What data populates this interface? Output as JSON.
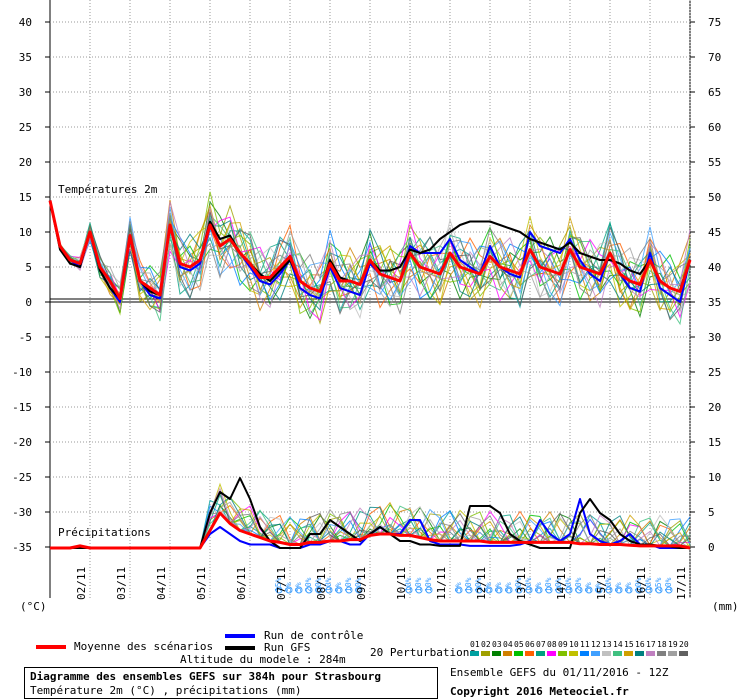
{
  "chart_data": {
    "type": "line",
    "title": "Diagramme des ensembles GEFS sur 384h pour Strasbourg",
    "subtitle": "Température 2m (°C) , précipitations (mm)",
    "ylabel_left": "(°C)",
    "ylabel_right": "(mm)",
    "y_left_ticks": [
      "40",
      "35",
      "30",
      "25",
      "20",
      "15",
      "10",
      "5",
      "0",
      "-5",
      "-10",
      "-15",
      "-20",
      "-25",
      "-30",
      "-35"
    ],
    "y_right_ticks": [
      "75",
      "70",
      "65",
      "60",
      "55",
      "50",
      "45",
      "40",
      "35",
      "30",
      "25",
      "20",
      "15",
      "10",
      "5",
      "0"
    ],
    "x_ticks": [
      "02/11",
      "03/11",
      "04/11",
      "05/11",
      "06/11",
      "07/11",
      "08/11",
      "09/11",
      "10/11",
      "11/11",
      "12/11",
      "13/11",
      "14/11",
      "15/11",
      "16/11",
      "17/11"
    ],
    "section_labels": {
      "temp": "Températures 2m",
      "precip": "Précipitations"
    },
    "x_step_hours": 6,
    "series": [
      {
        "name": "Moyenne des scénarios",
        "color": "#ff0000",
        "kind": "temp",
        "values": [
          14.5,
          8,
          6,
          5.5,
          10,
          5,
          3,
          0.5,
          9.5,
          3,
          2,
          1,
          11,
          5.5,
          5,
          6,
          11,
          8,
          9,
          7,
          5.5,
          3.5,
          3.5,
          5,
          6.5,
          3,
          2,
          1.5,
          5.5,
          3,
          3,
          2.5,
          6,
          4,
          3.5,
          3,
          7,
          5,
          4.5,
          4,
          7,
          5,
          4.5,
          4,
          6.5,
          5,
          4.5,
          4,
          7.5,
          5,
          4.5,
          4,
          7.5,
          5,
          4.5,
          4,
          7,
          4,
          3,
          2.5,
          6,
          3,
          2,
          1.5,
          6
        ]
      },
      {
        "name": "Run de contrôle",
        "color": "#0000ff",
        "kind": "temp",
        "values": [
          14.5,
          8,
          6,
          5,
          10,
          4.5,
          2,
          0,
          9,
          3,
          1,
          0.5,
          11,
          5,
          4.5,
          5.5,
          11,
          8,
          9,
          7,
          5,
          3,
          2.5,
          4,
          6,
          2,
          1,
          0.5,
          5,
          2,
          1.5,
          1,
          5.5,
          4,
          3.5,
          3,
          8,
          7,
          7,
          7,
          9,
          6,
          5,
          4,
          8,
          5,
          4,
          3.5,
          10,
          8,
          7.5,
          7,
          9,
          6,
          4,
          3,
          7,
          4,
          2,
          1.5,
          7,
          2,
          1,
          0,
          6
        ]
      },
      {
        "name": "Run GFS",
        "color": "#000000",
        "kind": "temp",
        "values": [
          14.5,
          7.5,
          5.5,
          5,
          10,
          4.5,
          2,
          0.5,
          9.5,
          3,
          1.5,
          1,
          11,
          5.5,
          5,
          6,
          11.5,
          9,
          9.5,
          7,
          5.5,
          4,
          3,
          4.5,
          6,
          3,
          2,
          1.5,
          6,
          3.5,
          3,
          2.5,
          6,
          4.5,
          4.5,
          5,
          7.5,
          7,
          7.5,
          9,
          10,
          11,
          11.5,
          11.5,
          11.5,
          11,
          10.5,
          10,
          9,
          8.5,
          8,
          7.5,
          8.5,
          7,
          6.5,
          6,
          6,
          5.5,
          4.5,
          4,
          6,
          3,
          2,
          1.5,
          6
        ]
      },
      {
        "name": "Moyenne des scénarios",
        "color": "#ff0000",
        "kind": "precip",
        "values": [
          0,
          0,
          0,
          0.3,
          0,
          0,
          0,
          0,
          0,
          0,
          0,
          0,
          0,
          0,
          0,
          0,
          2.5,
          5,
          3.5,
          2.5,
          2,
          1.5,
          1,
          0.8,
          0.5,
          0.5,
          0.8,
          0.8,
          1,
          1,
          1.2,
          1.2,
          1.8,
          2,
          2,
          1.8,
          1.8,
          1.5,
          1.2,
          1,
          1,
          1,
          1,
          1,
          0.8,
          0.8,
          0.8,
          0.8,
          0.8,
          0.8,
          0.8,
          0.8,
          0.8,
          0.6,
          0.6,
          0.5,
          0.5,
          0.5,
          0.4,
          0.3,
          0.3,
          0.3,
          0.3,
          0.3,
          0
        ]
      },
      {
        "name": "Run de contrôle",
        "color": "#0000ff",
        "kind": "precip",
        "values": [
          0,
          0,
          0,
          0,
          0,
          0,
          0,
          0,
          0,
          0,
          0,
          0,
          0,
          0,
          0,
          0,
          2,
          3,
          2,
          1,
          0.5,
          0.5,
          0.5,
          0,
          0,
          0,
          0.5,
          0.5,
          1,
          1,
          0.5,
          0.5,
          2,
          3,
          2,
          2,
          4,
          4,
          1,
          0.5,
          0.5,
          0.5,
          0.3,
          0.3,
          0.3,
          0.3,
          0.3,
          0.5,
          1,
          4,
          2,
          1,
          2,
          7,
          2,
          1,
          0.5,
          1,
          2,
          0.5,
          0.5,
          0,
          0,
          0,
          0
        ]
      },
      {
        "name": "Run GFS",
        "color": "#000000",
        "kind": "precip",
        "values": [
          0,
          0,
          0,
          0,
          0,
          0,
          0,
          0,
          0,
          0,
          0,
          0,
          0,
          0,
          0,
          0,
          5,
          8,
          7,
          10,
          7,
          3,
          1,
          0,
          0,
          0,
          2,
          2,
          4,
          3,
          2,
          1,
          2,
          3,
          2,
          1,
          1,
          0.5,
          0.5,
          0.3,
          0.3,
          0.3,
          6,
          6,
          6,
          5,
          2,
          1,
          0.5,
          0,
          0,
          0,
          0,
          5,
          7,
          5,
          4,
          2,
          1,
          0.5,
          0.5,
          0.3,
          0.2,
          0,
          0
        ]
      }
    ]
  },
  "perturbations": {
    "label": "20 Perturbations",
    "ids": [
      "01",
      "02",
      "03",
      "04",
      "05",
      "06",
      "07",
      "08",
      "09",
      "10",
      "11",
      "12",
      "13",
      "14",
      "15",
      "16",
      "17",
      "18",
      "19",
      "20"
    ],
    "colors": [
      "#00a0a0",
      "#a0a000",
      "#008000",
      "#d08000",
      "#00c000",
      "#ff6000",
      "#00a080",
      "#ff00ff",
      "#80c000",
      "#c0c000",
      "#0080ff",
      "#40a0ff",
      "#c0c0c0",
      "#40c080",
      "#d0a000",
      "#008080",
      "#c080c0",
      "#808080",
      "#a0a0a0",
      "#606060"
    ]
  },
  "snow_labels": [
    "15%",
    "5%",
    "5%",
    "20%",
    "20%",
    "10%",
    "5%",
    "10%",
    "20%",
    "10%",
    "10%",
    "10%",
    "5%",
    "10%",
    "10%",
    "5%",
    "5%",
    "5%",
    "10%",
    "10%",
    "5%",
    "10%",
    "10%",
    "10%",
    "20%",
    "5%",
    "5%",
    "10%",
    "5%",
    "5%",
    "10%",
    "10%",
    "25%",
    "10%",
    "10%",
    "10%",
    "20%",
    "20%"
  ],
  "legend": {
    "mean": "Moyenne des scénarios",
    "control": "Run de contrôle",
    "gfs": "Run GFS",
    "altitude": "Altitude du modele : 284m"
  },
  "footer": {
    "title": "Diagramme des ensembles GEFS sur 384h pour Strasbourg",
    "subtitle": "Température 2m (°C) , précipitations (mm)",
    "ensemble": "Ensemble GEFS du 01/11/2016 - 12Z",
    "copyright": "Copyright 2016 Meteociel.fr"
  },
  "colors": {
    "mean": "#ff0000",
    "control": "#0000ff",
    "gfs": "#000000",
    "snow": "#40a0ff",
    "grid": "#9a9a9a"
  }
}
